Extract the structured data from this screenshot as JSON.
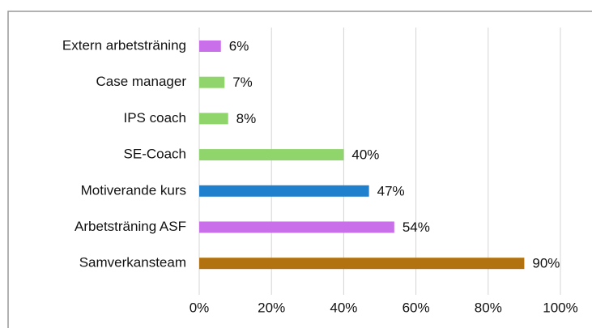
{
  "chart_data": {
    "type": "bar",
    "orientation": "horizontal",
    "categories": [
      "Extern arbetsträning",
      "Case manager",
      "IPS coach",
      "SE-Coach",
      "Motiverande kurs",
      "Arbetsträning ASF",
      "Samverkansteam"
    ],
    "values": [
      6,
      7,
      8,
      40,
      47,
      54,
      90
    ],
    "value_labels": [
      "6%",
      "7%",
      "8%",
      "40%",
      "47%",
      "54%",
      "90%"
    ],
    "colors": [
      "#c96fe9",
      "#8fd56b",
      "#8fd56b",
      "#8fd56b",
      "#1f80cd",
      "#c96fe9",
      "#b1720f"
    ],
    "xlim": [
      0,
      100
    ],
    "xticks": [
      {
        "value": 0,
        "label": "0%"
      },
      {
        "value": 20,
        "label": "20%"
      },
      {
        "value": 40,
        "label": "40%"
      },
      {
        "value": 60,
        "label": "60%"
      },
      {
        "value": 80,
        "label": "80%"
      },
      {
        "value": 100,
        "label": "100%"
      }
    ],
    "grid": true
  }
}
